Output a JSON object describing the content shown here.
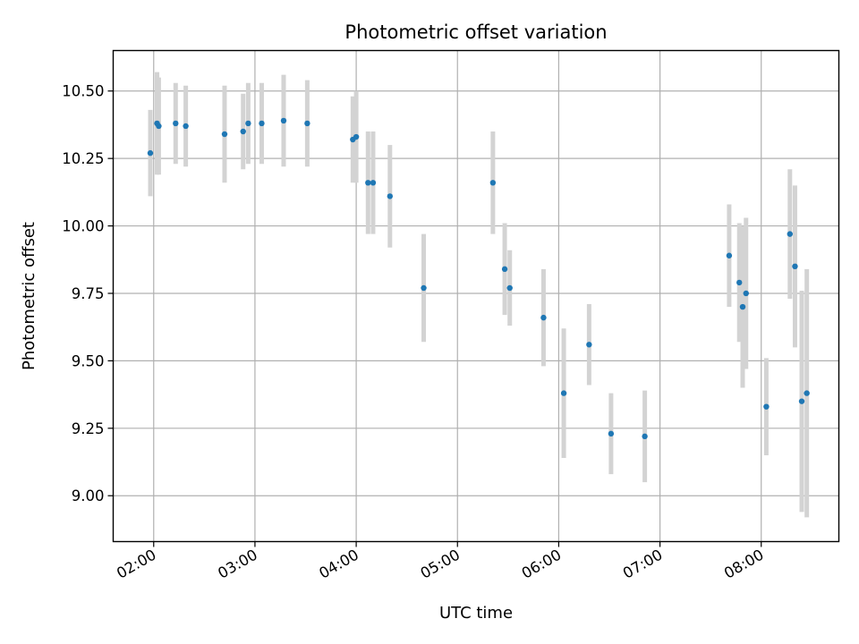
{
  "chart_data": {
    "type": "scatter",
    "title": "Photometric offset variation",
    "xlabel": "UTC time",
    "ylabel": "Photometric offset",
    "x_ticks": [
      "02:00",
      "03:00",
      "04:00",
      "05:00",
      "06:00",
      "07:00",
      "08:00"
    ],
    "y_ticks": [
      "9.00",
      "9.25",
      "9.50",
      "9.75",
      "10.00",
      "10.25",
      "10.50"
    ],
    "xlim": [
      "01:36",
      "08:46"
    ],
    "ylim": [
      8.83,
      10.65
    ],
    "grid": true,
    "marker_color": "#1f77b4",
    "errorbar_color": "#d3d3d3",
    "series": [
      {
        "x": [
          "01:58",
          "02:02",
          "02:03",
          "02:13",
          "02:19",
          "02:42",
          "02:53",
          "02:56",
          "03:04",
          "03:17",
          "03:31",
          "03:58",
          "04:00",
          "04:07",
          "04:10",
          "04:20",
          "04:40",
          "05:21",
          "05:28",
          "05:31",
          "05:51",
          "06:03",
          "06:18",
          "06:31",
          "06:51",
          "07:41",
          "07:47",
          "07:49",
          "07:51",
          "08:03",
          "08:17",
          "08:20",
          "08:24",
          "08:27"
        ],
        "y": [
          10.27,
          10.38,
          10.37,
          10.38,
          10.37,
          10.34,
          10.35,
          10.38,
          10.38,
          10.39,
          10.38,
          10.32,
          10.33,
          10.16,
          10.16,
          10.11,
          9.77,
          10.16,
          9.84,
          9.77,
          9.66,
          9.38,
          9.56,
          9.23,
          9.22,
          9.89,
          9.79,
          9.7,
          9.75,
          9.33,
          9.97,
          9.85,
          9.35,
          9.38
        ],
        "yerr": [
          0.16,
          0.19,
          0.18,
          0.15,
          0.15,
          0.18,
          0.14,
          0.15,
          0.15,
          0.17,
          0.16,
          0.16,
          0.17,
          0.19,
          0.19,
          0.19,
          0.2,
          0.19,
          0.17,
          0.14,
          0.18,
          0.24,
          0.15,
          0.15,
          0.17,
          0.19,
          0.22,
          0.3,
          0.28,
          0.18,
          0.24,
          0.3,
          0.41,
          0.46
        ]
      }
    ]
  }
}
